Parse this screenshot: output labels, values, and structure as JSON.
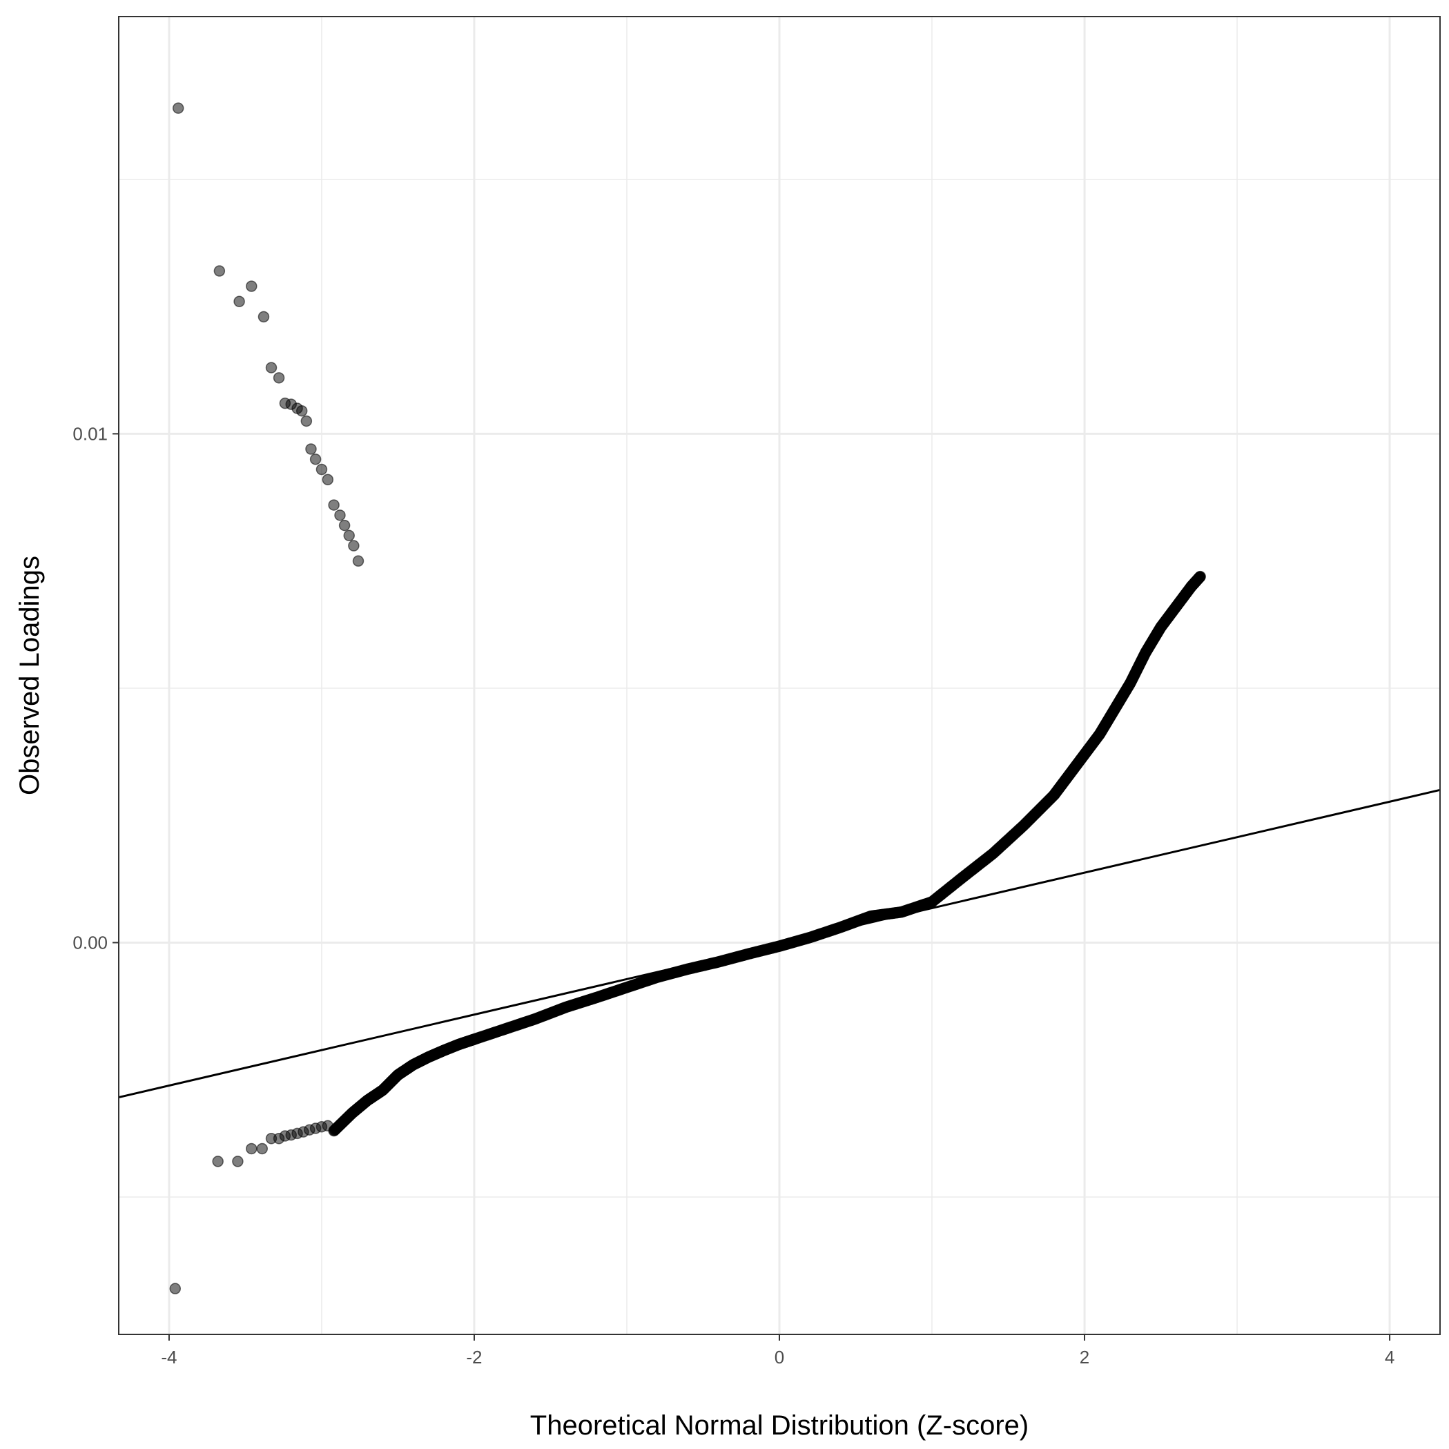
{
  "chart_data": {
    "type": "scatter",
    "subtype": "qq-plot",
    "title": "",
    "xlabel": "Theoretical Normal Distribution (Z-score)",
    "ylabel": "Observed Loadings",
    "xlim": [
      -4.33,
      4.33
    ],
    "ylim": [
      -0.0077,
      0.0182
    ],
    "x_ticks": [
      -4,
      -2,
      0,
      2,
      4
    ],
    "x_tick_labels": [
      "-4",
      "-2",
      "0",
      "2",
      "4"
    ],
    "y_ticks": [
      0.0,
      0.01
    ],
    "y_tick_labels": [
      "0.00",
      "0.01"
    ],
    "grid": true,
    "legend": "none",
    "point_color": "#000000",
    "reference_line": {
      "x": [
        -4.33,
        4.33
      ],
      "y": [
        -0.00304,
        0.003
      ]
    },
    "curve": {
      "description": "dense band of points following the quantiles",
      "x": [
        -2.92,
        -2.8,
        -2.7,
        -2.6,
        -2.5,
        -2.4,
        -2.3,
        -2.2,
        -2.1,
        -2.0,
        -1.8,
        -1.6,
        -1.4,
        -1.2,
        -1.0,
        -0.8,
        -0.6,
        -0.4,
        -0.2,
        0.0,
        0.2,
        0.4,
        0.6,
        0.8,
        1.0,
        1.2,
        1.4,
        1.6,
        1.8,
        1.9,
        2.0,
        2.1,
        2.2,
        2.3,
        2.4,
        2.5,
        2.6,
        2.7,
        2.76
      ],
      "y": [
        -0.0037,
        -0.00335,
        -0.0031,
        -0.0029,
        -0.0026,
        -0.0024,
        -0.00225,
        -0.00212,
        -0.002,
        -0.0019,
        -0.0017,
        -0.0015,
        -0.00127,
        -0.00108,
        -0.00088,
        -0.00068,
        -0.00052,
        -0.00038,
        -0.00022,
        -7e-05,
        0.0001,
        0.0003,
        0.00052,
        0.0006,
        0.0008,
        0.00128,
        0.00175,
        0.0023,
        0.0029,
        0.0033,
        0.0037,
        0.0041,
        0.0046,
        0.0051,
        0.0057,
        0.0062,
        0.0066,
        0.007,
        0.0072
      ]
    },
    "points": {
      "x": [
        -3.96,
        -3.68,
        -3.55,
        -3.46,
        -3.39,
        -3.33,
        -3.28,
        -3.24,
        -3.2,
        -3.16,
        -3.12,
        -3.08,
        -3.04,
        -3.0,
        -2.96,
        -2.76,
        -2.79,
        -2.82,
        -2.85,
        -2.88,
        -2.92,
        -2.96,
        -3.0,
        -3.04,
        -3.07,
        -3.1,
        -3.13,
        -3.16,
        -3.2,
        -3.24,
        -3.28,
        -3.33,
        -3.38,
        -3.46,
        -3.54,
        -3.67,
        -3.94
      ],
      "y": [
        -0.0068,
        -0.0043,
        -0.0043,
        -0.00405,
        -0.00405,
        -0.00385,
        -0.00385,
        -0.0038,
        -0.00378,
        -0.00375,
        -0.00372,
        -0.00368,
        -0.00365,
        -0.00362,
        -0.0036,
        0.0075,
        0.0078,
        0.008,
        0.0082,
        0.0084,
        0.0086,
        0.0091,
        0.0093,
        0.0095,
        0.0097,
        0.01025,
        0.01045,
        0.0105,
        0.01058,
        0.0106,
        0.0111,
        0.0113,
        0.0123,
        0.0129,
        0.0126,
        0.0132,
        0.0164
      ]
    }
  }
}
